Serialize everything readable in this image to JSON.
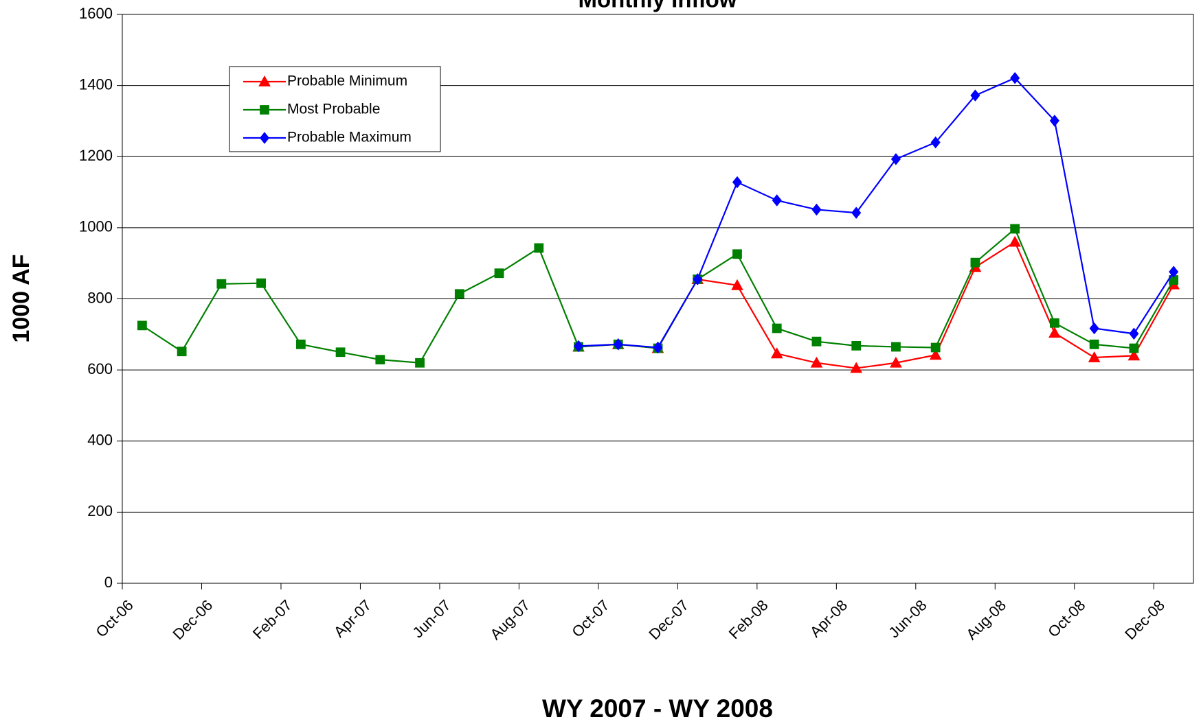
{
  "chart_data": {
    "type": "line",
    "title": "Monthly Inflow",
    "x_label": "WY 2007 - WY 2008",
    "y_label": "1000 AF",
    "categories": [
      "Oct-06",
      null,
      "Dec-06",
      null,
      "Feb-07",
      null,
      "Apr-07",
      null,
      "Jun-07",
      null,
      "Aug-07",
      null,
      "Oct-07",
      null,
      "Dec-07",
      null,
      "Feb-08",
      null,
      "Apr-08",
      null,
      "Jun-08",
      null,
      "Aug-08",
      null,
      "Oct-08",
      null,
      "Dec-08"
    ],
    "series": [
      {
        "name": "Probable Minimum",
        "color": "#ff0000",
        "marker": "triangle",
        "values": [
          null,
          null,
          null,
          null,
          null,
          null,
          null,
          null,
          null,
          null,
          null,
          665,
          672,
          661,
          855,
          838,
          646,
          620,
          605,
          620,
          642,
          889,
          960,
          704,
          635,
          640,
          840
        ]
      },
      {
        "name": "Most Probable",
        "color": "#008000",
        "marker": "square",
        "values": [
          725,
          652,
          842,
          844,
          672,
          650,
          629,
          620,
          814,
          872,
          943,
          665,
          672,
          661,
          855,
          926,
          717,
          680,
          668,
          665,
          663,
          902,
          997,
          732,
          672,
          661,
          853
        ]
      },
      {
        "name": "Probable Maximum",
        "color": "#0000ff",
        "marker": "diamond",
        "values": [
          null,
          null,
          null,
          null,
          null,
          null,
          null,
          null,
          null,
          null,
          null,
          667,
          672,
          663,
          855,
          1128,
          1077,
          1051,
          1042,
          1193,
          1240,
          1372,
          1421,
          1301,
          717,
          702,
          876
        ]
      }
    ],
    "ylim": [
      0,
      1600
    ],
    "yticks": [
      0,
      200,
      400,
      600,
      800,
      1000,
      1200,
      1400,
      1600
    ],
    "grid": true,
    "legend": "upper left"
  }
}
